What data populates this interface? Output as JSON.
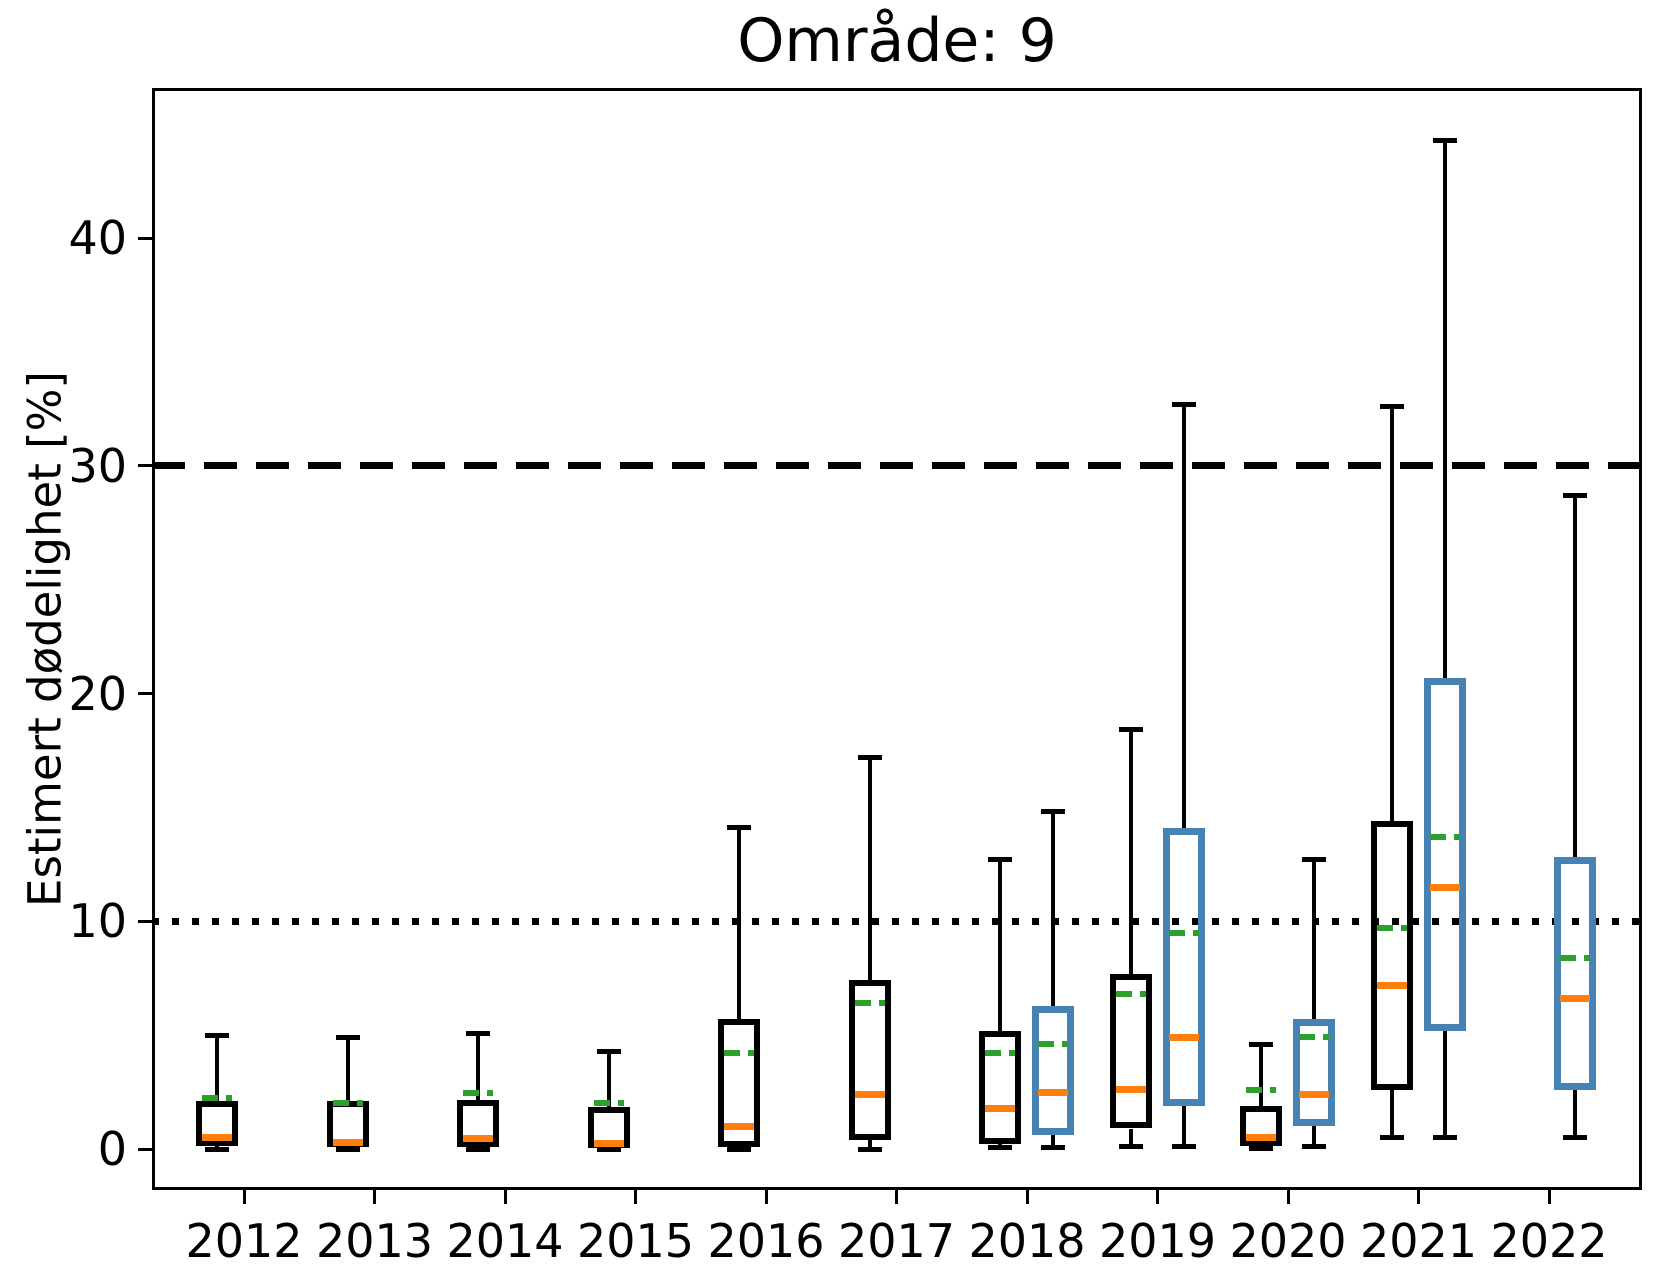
{
  "title": "Område: 9",
  "y_axis": {
    "label": "Estimert dødelighet [%]",
    "tick_labels": [
      "0",
      "10",
      "20",
      "30",
      "40"
    ],
    "tick_values": [
      0,
      10,
      20,
      30,
      40
    ]
  },
  "x_axis": {
    "tick_labels": [
      "2012",
      "2013",
      "2014",
      "2015",
      "2016",
      "2017",
      "2018",
      "2019",
      "2020",
      "2021",
      "2022"
    ]
  },
  "colors": {
    "black_series": "#000000",
    "blue_series": "#4682B4",
    "median_line": "#FF7F0E",
    "mean_line": "#2CA02C",
    "reference_lines": "#000000"
  },
  "chart_data": {
    "type": "boxplot",
    "title": "Område: 9",
    "xlabel": "",
    "ylabel": "Estimert dødelighet [%]",
    "categories": [
      "2012",
      "2013",
      "2014",
      "2015",
      "2016",
      "2017",
      "2018",
      "2019",
      "2020",
      "2021",
      "2022"
    ],
    "ylim": [
      -1.8,
      46.6
    ],
    "yticks": [
      0,
      10,
      20,
      30,
      40
    ],
    "grid": false,
    "legend": "none",
    "hlines": [
      {
        "y": 30,
        "style": "dashed",
        "color": "#000000"
      },
      {
        "y": 10,
        "style": "dotted",
        "color": "#000000"
      }
    ],
    "series": [
      {
        "name": "black",
        "color": "#000000",
        "boxes": [
          {
            "year": 2012,
            "whislo": 0.0,
            "q1": 0.15,
            "med": 0.5,
            "mean": 2.25,
            "q3": 2.1,
            "whishi": 5.0
          },
          {
            "year": 2013,
            "whislo": 0.0,
            "q1": 0.1,
            "med": 0.3,
            "mean": 2.0,
            "q3": 2.1,
            "whishi": 4.9
          },
          {
            "year": 2014,
            "whislo": 0.0,
            "q1": 0.1,
            "med": 0.45,
            "mean": 2.45,
            "q3": 2.15,
            "whishi": 5.05
          },
          {
            "year": 2015,
            "whislo": 0.0,
            "q1": 0.05,
            "med": 0.25,
            "mean": 2.0,
            "q3": 1.85,
            "whishi": 4.3
          },
          {
            "year": 2016,
            "whislo": 0.0,
            "q1": 0.1,
            "med": 1.0,
            "mean": 4.2,
            "q3": 5.7,
            "whishi": 14.1
          },
          {
            "year": 2017,
            "whislo": 0.0,
            "q1": 0.4,
            "med": 2.4,
            "mean": 6.4,
            "q3": 7.4,
            "whishi": 17.2
          },
          {
            "year": 2018,
            "whislo": 0.05,
            "q1": 0.2,
            "med": 1.8,
            "mean": 4.2,
            "q3": 5.2,
            "whishi": 12.7
          },
          {
            "year": 2019,
            "whislo": 0.1,
            "q1": 0.9,
            "med": 2.6,
            "mean": 6.8,
            "q3": 7.7,
            "whishi": 18.4
          },
          {
            "year": 2020,
            "whislo": 0.02,
            "q1": 0.15,
            "med": 0.5,
            "mean": 2.6,
            "q3": 1.9,
            "whishi": 4.6
          },
          {
            "year": 2021,
            "whislo": 0.5,
            "q1": 2.6,
            "med": 7.2,
            "mean": 9.7,
            "q3": 14.4,
            "whishi": 32.6
          }
        ]
      },
      {
        "name": "blue",
        "color": "#4682B4",
        "boxes": [
          {
            "year": 2018,
            "whislo": 0.05,
            "q1": 0.6,
            "med": 2.5,
            "mean": 4.6,
            "q3": 6.3,
            "whishi": 14.8
          },
          {
            "year": 2019,
            "whislo": 0.1,
            "q1": 1.9,
            "med": 4.9,
            "mean": 9.5,
            "q3": 14.1,
            "whishi": 32.7
          },
          {
            "year": 2020,
            "whislo": 0.1,
            "q1": 1.0,
            "med": 2.4,
            "mean": 4.9,
            "q3": 5.7,
            "whishi": 12.7
          },
          {
            "year": 2021,
            "whislo": 0.5,
            "q1": 5.2,
            "med": 11.5,
            "mean": 13.7,
            "q3": 20.7,
            "whishi": 44.3
          },
          {
            "year": 2022,
            "whislo": 0.5,
            "q1": 2.6,
            "med": 6.6,
            "mean": 8.4,
            "q3": 12.8,
            "whishi": 28.7
          }
        ]
      }
    ]
  }
}
